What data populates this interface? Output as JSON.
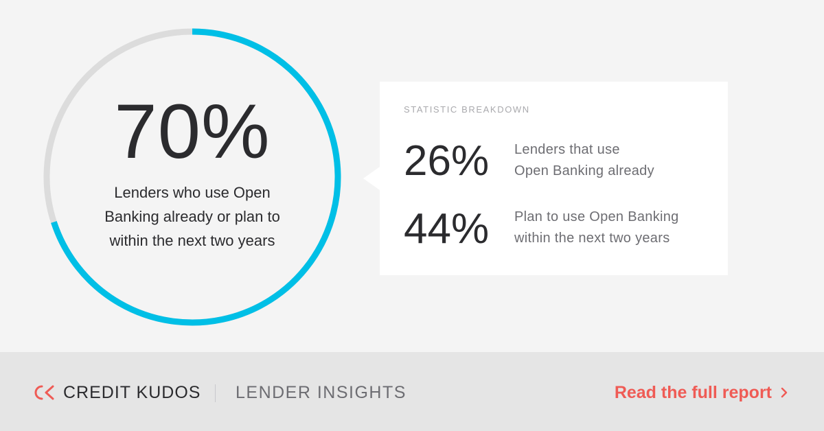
{
  "chart_data": {
    "type": "pie",
    "variant": "donut",
    "center_value": "70%",
    "center_label": "Lenders who use Open Banking already or plan to within the next two years",
    "values": [
      70,
      30
    ],
    "colors": [
      "#00bfe6",
      "#dcdcdc"
    ]
  },
  "center": {
    "value": "70%",
    "caption_lines": [
      "Lenders who use Open",
      "Banking already or plan to",
      "within the next two years"
    ]
  },
  "breakdown": {
    "heading": "STATISTIC BREAKDOWN",
    "stats": [
      {
        "value": "26%",
        "label_lines": [
          "Lenders that use",
          "Open Banking already"
        ]
      },
      {
        "value": "44%",
        "label_lines": [
          "Plan to use Open Banking",
          "within the next two years"
        ]
      }
    ]
  },
  "footer": {
    "brand": "CREDIT KUDOS",
    "section": "LENDER INSIGHTS",
    "cta": "Read the full report",
    "logo_icon": "ck-logo-icon",
    "cta_icon": "chevron-right-icon",
    "accent_color": "#ef5b55"
  }
}
